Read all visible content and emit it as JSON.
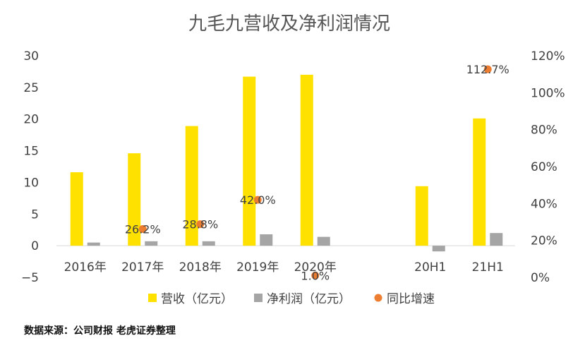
{
  "chart_data": {
    "type": "bar",
    "title": "九毛九营收及净利润情况",
    "categories": [
      "2016年",
      "2017年",
      "2018年",
      "2019年",
      "2020年",
      "",
      "20H1",
      "21H1"
    ],
    "series": [
      {
        "name": "营收（亿元）",
        "type": "bar",
        "axis": "left",
        "color": "#FFE100",
        "values": [
          11.6,
          14.6,
          18.9,
          26.7,
          27.0,
          null,
          9.4,
          20.1
        ]
      },
      {
        "name": "净利润（亿元）",
        "type": "bar",
        "axis": "left",
        "color": "#A5A5A5",
        "values": [
          0.5,
          0.7,
          0.7,
          1.8,
          1.4,
          null,
          -0.9,
          2.0
        ]
      },
      {
        "name": "同比增速",
        "type": "scatter",
        "axis": "right",
        "color": "#ED7D31",
        "values": [
          null,
          26.2,
          28.8,
          42.0,
          1.0,
          null,
          null,
          112.7
        ],
        "labels": [
          "",
          "26.2%",
          "28.8%",
          "42.0%",
          "1.0%",
          "",
          "",
          "112.7%"
        ]
      }
    ],
    "y_left": {
      "min": -5,
      "max": 30,
      "ticks": [
        "30",
        "25",
        "20",
        "15",
        "10",
        "5",
        "0",
        "−5"
      ]
    },
    "y_right": {
      "min": 0,
      "max": 120,
      "ticks": [
        "120%",
        "100%",
        "80%",
        "60%",
        "40%",
        "20%",
        "0%"
      ]
    },
    "grid": false,
    "legend_position": "bottom"
  },
  "source_note": "数据来源：公司财报 老虎证券整理"
}
